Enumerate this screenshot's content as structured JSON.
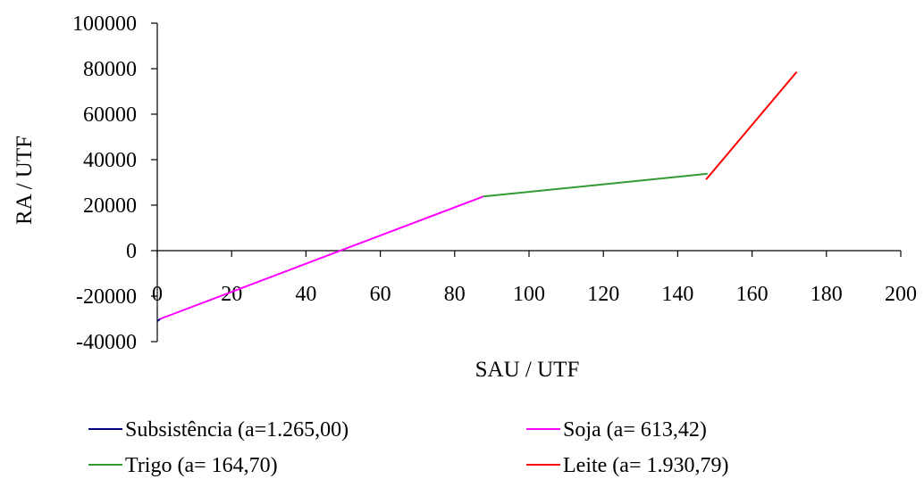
{
  "chart_data": {
    "type": "line",
    "title": "",
    "xlabel": "SAU / UTF",
    "ylabel": "RA / UTF",
    "xlim": [
      0,
      200
    ],
    "ylim": [
      -40000,
      100000
    ],
    "x_ticks": [
      "0",
      "20",
      "40",
      "60",
      "80",
      "100",
      "120",
      "140",
      "160",
      "180",
      "200"
    ],
    "y_ticks": [
      "100000",
      "80000",
      "60000",
      "40000",
      "20000",
      "0",
      "-20000",
      "-40000"
    ],
    "grid": false,
    "legend_position": "bottom",
    "series": [
      {
        "name": "Subsistência (a=1.265,00)",
        "color": "#000080",
        "x": [
          0,
          0.8
        ],
        "y": [
          -31000,
          -30000
        ]
      },
      {
        "name": "Soja (a= 613,42)",
        "color": "#ff00ff",
        "x": [
          0.8,
          87.7
        ],
        "y": [
          -30000,
          23800
        ]
      },
      {
        "name": "Trigo (a= 164,70)",
        "color": "#339933",
        "x": [
          87.7,
          148
        ],
        "y": [
          23800,
          33800
        ]
      },
      {
        "name": "Leite (a= 1.930,79)",
        "color": "#ff0000",
        "x": [
          147.6,
          148,
          172
        ],
        "y": [
          31300,
          32000,
          78600
        ]
      }
    ]
  }
}
